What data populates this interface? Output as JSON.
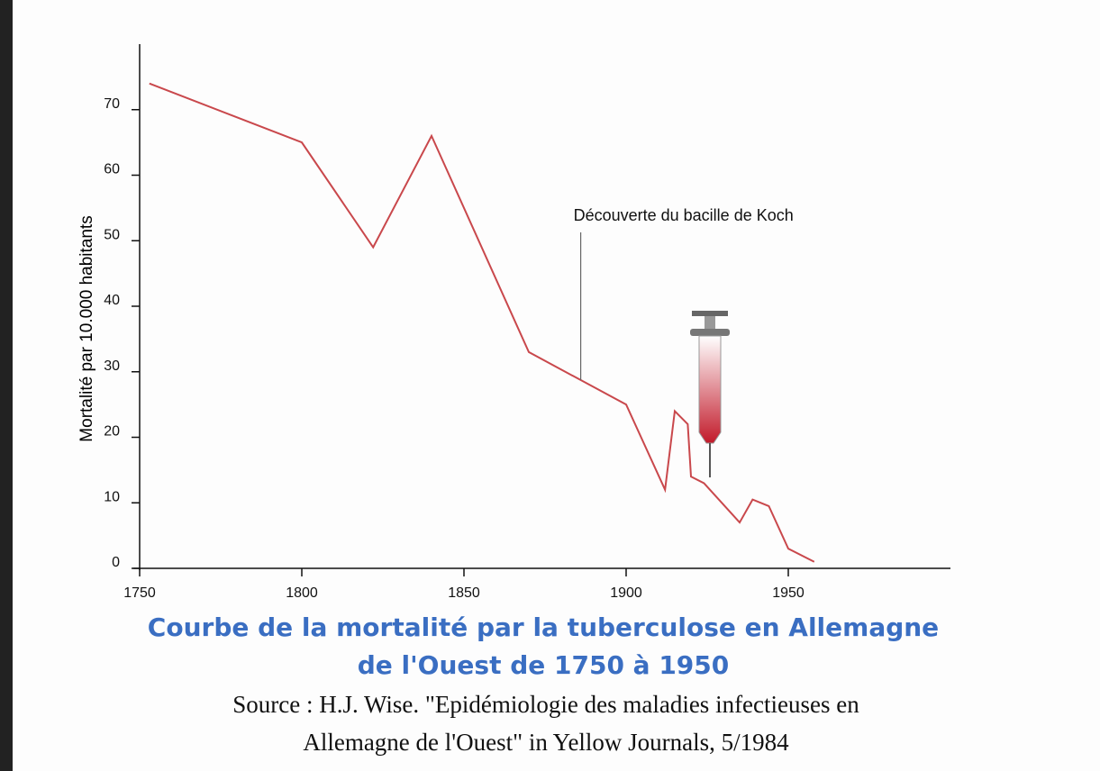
{
  "chart_data": {
    "type": "line",
    "title": [
      "Courbe de la mortalité par la tuberculose en Allemagne",
      "de l'Ouest de 1750 à 1950"
    ],
    "source": [
      "Source : H.J. Wise. \"Epidémiologie des maladies infectieuses en",
      "Allemagne de l'Ouest\"  in Yellow Journals, 5/1984"
    ],
    "y_label": "Mortalité par 10.000 habitants",
    "annotation": {
      "text": "Découverte du bacille de Koch",
      "x": 1886
    },
    "x": [
      1753,
      1800,
      1822,
      1840,
      1870,
      1900,
      1912,
      1915,
      1919,
      1920,
      1924,
      1935,
      1939,
      1944,
      1950,
      1958
    ],
    "values": [
      74,
      65,
      49,
      66,
      33,
      25,
      12,
      24,
      22,
      14,
      13,
      7,
      10.5,
      9.5,
      3,
      1
    ],
    "color": "#c9484c",
    "xlim": [
      1750,
      2000
    ],
    "xticks": [
      1750,
      1800,
      1850,
      1900,
      1950
    ],
    "ylim": [
      0,
      80
    ],
    "yticks": [
      0,
      10,
      20,
      30,
      40,
      50,
      60,
      70
    ]
  }
}
